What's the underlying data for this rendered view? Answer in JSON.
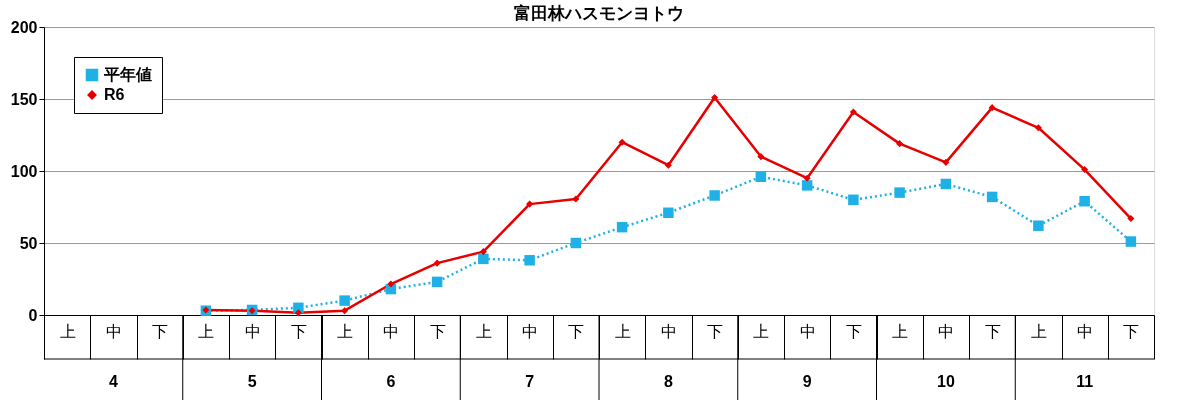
{
  "chart_data": {
    "type": "line",
    "title": "富田林ハスモンヨトウ",
    "categories": [
      "上",
      "中",
      "下",
      "上",
      "中",
      "下",
      "上",
      "中",
      "下",
      "上",
      "中",
      "下",
      "上",
      "中",
      "下",
      "上",
      "中",
      "下",
      "上",
      "中",
      "下",
      "上",
      "中",
      "下"
    ],
    "annotations": [
      "4",
      "5",
      "6",
      "7",
      "8",
      "9",
      "10",
      "11"
    ],
    "series": [
      {
        "name": "平年値",
        "color": "#1fb0e6",
        "marker": "square",
        "line_style": "dotted",
        "values": [
          null,
          null,
          null,
          3,
          3.5,
          5,
          10,
          18,
          23,
          39,
          38,
          50,
          61,
          71,
          83,
          96,
          90,
          80,
          85,
          91,
          82,
          62,
          79,
          51
        ]
      },
      {
        "name": "R6",
        "color": "#e60000",
        "marker": "diamond",
        "line_style": "solid",
        "values": [
          null,
          null,
          null,
          3.5,
          3,
          1.5,
          3,
          21.5,
          36,
          44,
          77,
          80.5,
          120,
          104,
          151,
          110,
          95,
          141,
          119,
          106,
          144,
          130,
          101,
          67
        ]
      }
    ],
    "ylim": [
      0,
      200
    ],
    "yticks": [
      0,
      50,
      100,
      150,
      200
    ],
    "grid": "y",
    "legend": "top left"
  }
}
